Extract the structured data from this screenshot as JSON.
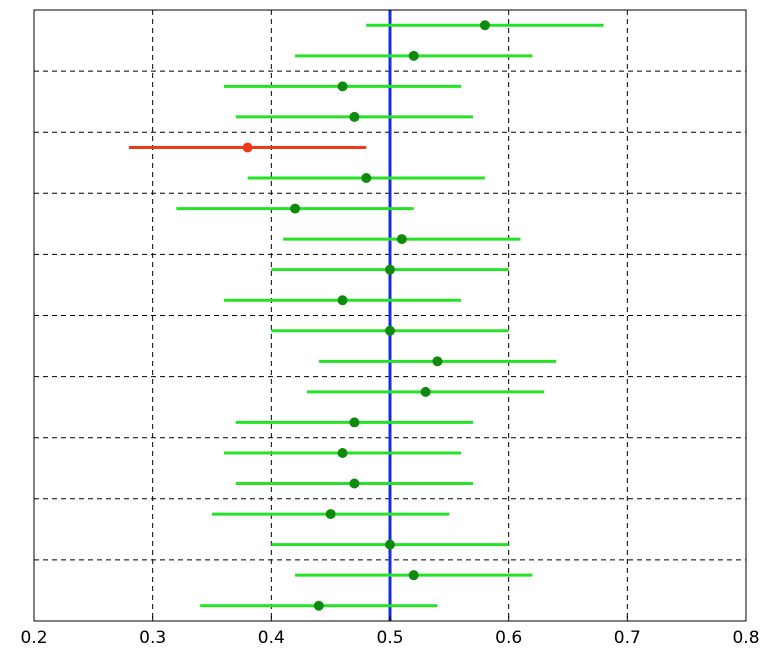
{
  "chart_data": {
    "type": "scatter",
    "subtype": "confidence-interval-plot",
    "title": "",
    "xlabel": "",
    "ylabel": "",
    "xlim": [
      0.2,
      0.8
    ],
    "xticks": [
      0.2,
      0.3,
      0.4,
      0.5,
      0.6,
      0.7,
      0.8
    ],
    "xtick_labels": [
      "0.2",
      "0.3",
      "0.4",
      "0.5",
      "0.6",
      "0.7",
      "0.8"
    ],
    "grid": true,
    "reference_line": {
      "x": 0.5,
      "color": "#1a2bd9"
    },
    "colors": {
      "interval": "#27e127",
      "point": "#0f8a0f",
      "highlight_interval": "#ee3a17",
      "highlight_point": "#ee3a17",
      "grid": "#000000"
    },
    "intervals": [
      {
        "center": 0.58,
        "low": 0.48,
        "high": 0.68,
        "highlight": false
      },
      {
        "center": 0.52,
        "low": 0.42,
        "high": 0.62,
        "highlight": false
      },
      {
        "center": 0.46,
        "low": 0.36,
        "high": 0.56,
        "highlight": false
      },
      {
        "center": 0.47,
        "low": 0.37,
        "high": 0.57,
        "highlight": false
      },
      {
        "center": 0.38,
        "low": 0.28,
        "high": 0.48,
        "highlight": true
      },
      {
        "center": 0.48,
        "low": 0.38,
        "high": 0.58,
        "highlight": false
      },
      {
        "center": 0.42,
        "low": 0.32,
        "high": 0.52,
        "highlight": false
      },
      {
        "center": 0.51,
        "low": 0.41,
        "high": 0.61,
        "highlight": false
      },
      {
        "center": 0.5,
        "low": 0.4,
        "high": 0.6,
        "highlight": false
      },
      {
        "center": 0.46,
        "low": 0.36,
        "high": 0.56,
        "highlight": false
      },
      {
        "center": 0.5,
        "low": 0.4,
        "high": 0.6,
        "highlight": false
      },
      {
        "center": 0.54,
        "low": 0.44,
        "high": 0.64,
        "highlight": false
      },
      {
        "center": 0.53,
        "low": 0.43,
        "high": 0.63,
        "highlight": false
      },
      {
        "center": 0.47,
        "low": 0.37,
        "high": 0.57,
        "highlight": false
      },
      {
        "center": 0.46,
        "low": 0.36,
        "high": 0.56,
        "highlight": false
      },
      {
        "center": 0.47,
        "low": 0.37,
        "high": 0.57,
        "highlight": false
      },
      {
        "center": 0.45,
        "low": 0.35,
        "high": 0.55,
        "highlight": false
      },
      {
        "center": 0.5,
        "low": 0.4,
        "high": 0.6,
        "highlight": false
      },
      {
        "center": 0.52,
        "low": 0.42,
        "high": 0.62,
        "highlight": false
      },
      {
        "center": 0.44,
        "low": 0.34,
        "high": 0.54,
        "highlight": false
      }
    ]
  }
}
